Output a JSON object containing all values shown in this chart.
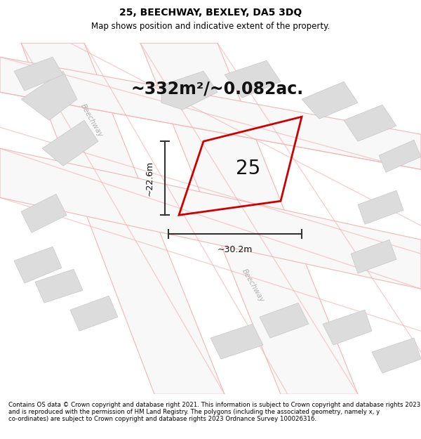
{
  "title": "25, BEECHWAY, BEXLEY, DA5 3DQ",
  "subtitle": "Map shows position and indicative extent of the property.",
  "area_text": "~332m²/~0.082ac.",
  "label_25": "25",
  "dim_height": "~22.6m",
  "dim_width": "~30.2m",
  "footer": "Contains OS data © Crown copyright and database right 2021. This information is subject to Crown copyright and database rights 2023 and is reproduced with the permission of HM Land Registry. The polygons (including the associated geometry, namely x, y co-ordinates) are subject to Crown copyright and database rights 2023 Ordnance Survey 100026316.",
  "map_bg": "#f2f2f2",
  "road_fill": "#f8f8f8",
  "road_line_color": "#f0b8b8",
  "building_color": "#dcdcdc",
  "building_edge": "#c8c8c8",
  "plot_outline_color": "#cc0000",
  "dim_line_color": "#333333",
  "street_label_color": "#b0b0b0",
  "title_fontsize": 10,
  "subtitle_fontsize": 8.5,
  "area_fontsize": 17,
  "label_fontsize": 20,
  "dim_fontsize": 9,
  "footer_fontsize": 6.2
}
